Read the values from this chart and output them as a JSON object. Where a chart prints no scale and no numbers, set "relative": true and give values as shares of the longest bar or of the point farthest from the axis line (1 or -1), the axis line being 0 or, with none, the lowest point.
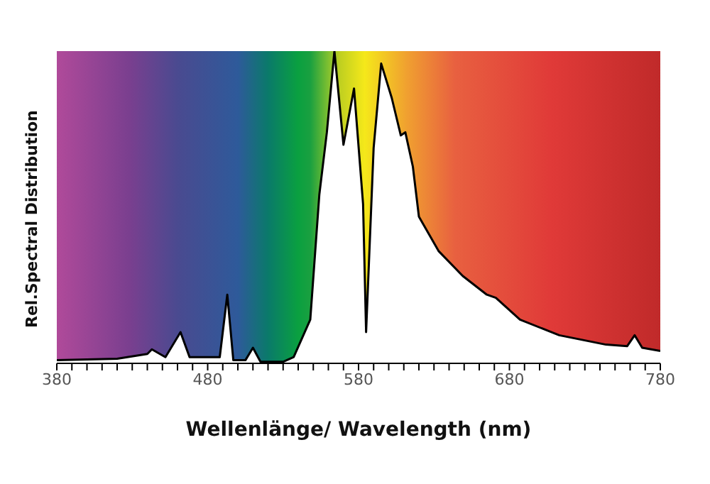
{
  "chart_data": {
    "type": "area",
    "xlabel": "Wellenlänge/ Wavelength (nm)",
    "ylabel": "Rel.Spectral Distribution",
    "relative": true,
    "tick_labels": "x",
    "grid": false,
    "legend": false,
    "x": [
      380,
      420,
      440,
      443,
      452,
      462,
      468,
      480,
      488,
      493,
      497,
      505,
      510,
      515,
      530,
      537,
      548,
      554,
      559,
      564,
      570,
      577,
      583,
      585,
      590,
      595,
      602,
      608,
      611,
      616,
      620,
      633,
      649,
      665,
      671,
      687,
      713,
      744,
      758,
      763,
      768,
      780
    ],
    "series": [
      {
        "color": "#ffffff",
        "values": [
          0.01,
          0.015,
          0.03,
          0.045,
          0.02,
          0.1,
          0.02,
          0.02,
          0.02,
          0.22,
          0.01,
          0.01,
          0.05,
          0.005,
          0.005,
          0.02,
          0.14,
          0.54,
          0.74,
          1.0,
          0.7,
          0.88,
          0.51,
          0.1,
          0.69,
          0.96,
          0.85,
          0.73,
          0.74,
          0.63,
          0.47,
          0.36,
          0.28,
          0.22,
          0.21,
          0.14,
          0.09,
          0.06,
          0.055,
          0.09,
          0.05,
          0.04
        ]
      }
    ],
    "xlim": [
      380,
      780
    ],
    "xticks": [
      380,
      {
        "value": 390,
        "label": null
      },
      {
        "value": 400,
        "label": null
      },
      {
        "value": 410,
        "label": null
      },
      {
        "value": 420,
        "label": null
      },
      {
        "value": 430,
        "label": null
      },
      {
        "value": 440,
        "label": null
      },
      {
        "value": 450,
        "label": null
      },
      {
        "value": 460,
        "label": null
      },
      {
        "value": 470,
        "label": null
      },
      480,
      {
        "value": 490,
        "label": null
      },
      {
        "value": 500,
        "label": null
      },
      {
        "value": 510,
        "label": null
      },
      {
        "value": 520,
        "label": null
      },
      {
        "value": 530,
        "label": null
      },
      {
        "value": 540,
        "label": null
      },
      {
        "value": 550,
        "label": null
      },
      {
        "value": 560,
        "label": null
      },
      {
        "value": 570,
        "label": null
      },
      580,
      {
        "value": 590,
        "label": null
      },
      {
        "value": 600,
        "label": null
      },
      {
        "value": 610,
        "label": null
      },
      {
        "value": 620,
        "label": null
      },
      {
        "value": 630,
        "label": null
      },
      {
        "value": 640,
        "label": null
      },
      {
        "value": 650,
        "label": null
      },
      {
        "value": 660,
        "label": null
      },
      {
        "value": 670,
        "label": null
      },
      680,
      {
        "value": 690,
        "label": null
      },
      {
        "value": 700,
        "label": null
      },
      {
        "value": 710,
        "label": null
      },
      {
        "value": 720,
        "label": null
      },
      {
        "value": 730,
        "label": null
      },
      {
        "value": 740,
        "label": null
      },
      {
        "value": 750,
        "label": null
      },
      {
        "value": 760,
        "label": null
      },
      {
        "value": 770,
        "label": null
      },
      780
    ]
  }
}
